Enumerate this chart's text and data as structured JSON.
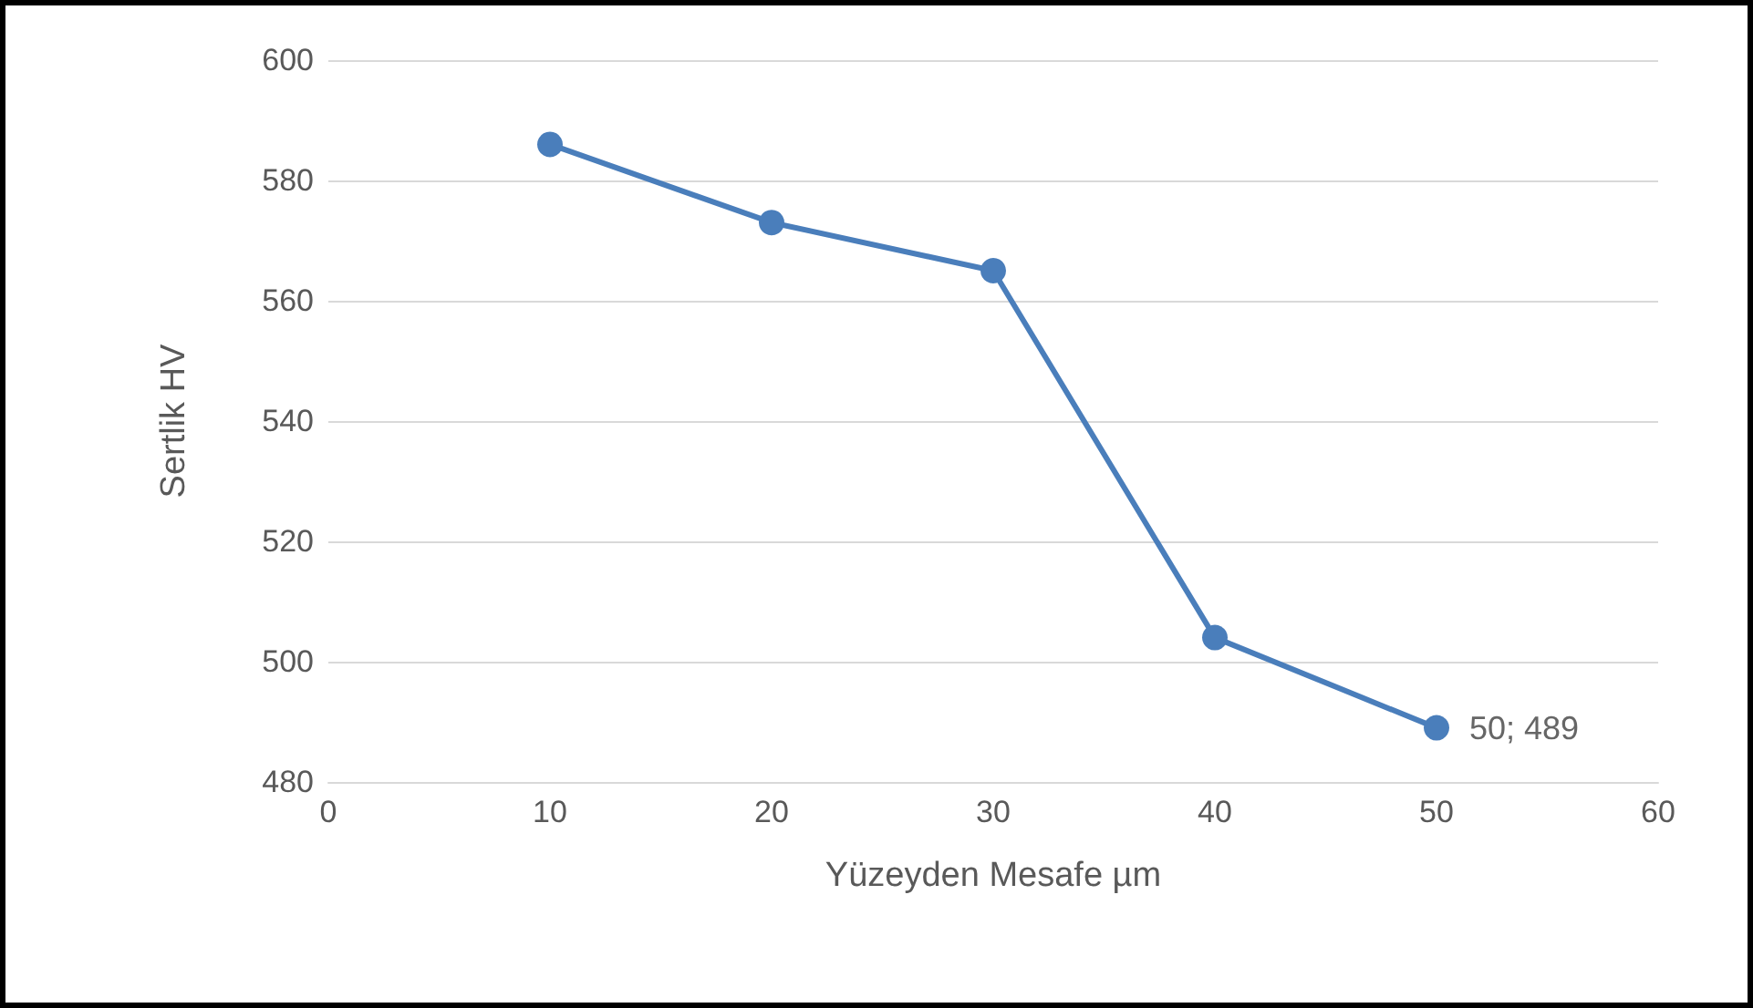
{
  "chart_data": {
    "type": "line",
    "xlabel": "Yüzeyden Mesafe µm",
    "ylabel": "Sertlik HV",
    "x": [
      10,
      20,
      30,
      40,
      50
    ],
    "series": [
      {
        "color": "#4a7ebb",
        "values": [
          586,
          573,
          565,
          504,
          489
        ]
      }
    ],
    "xlim": [
      0,
      60
    ],
    "xticks": [
      0,
      10,
      20,
      30,
      40,
      50,
      60
    ],
    "ylim": [
      480,
      600
    ],
    "yticks": [
      480,
      500,
      520,
      540,
      560,
      580,
      600
    ],
    "grid": "y",
    "marker": "circle",
    "line_style": "solid",
    "annotations": [
      {
        "text": "50; 489",
        "x": 50,
        "y": 489
      }
    ]
  }
}
